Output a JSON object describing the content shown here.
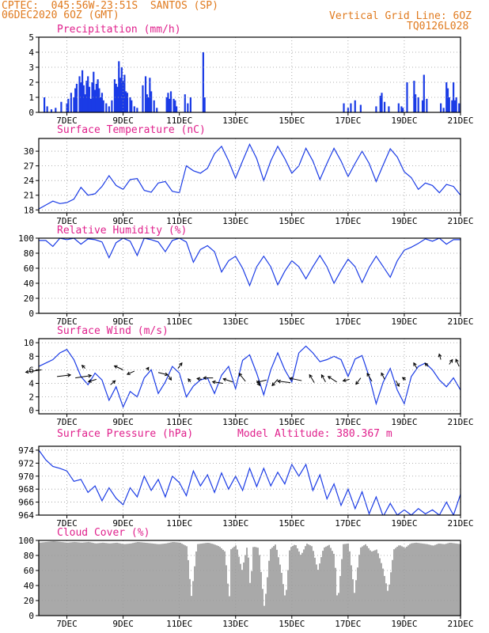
{
  "header": {
    "line1_left": "CPTEC:  045:56W-23:51S  SANTOS (SP)",
    "line2_left": "06DEC2020 6OZ (GMT)",
    "line1_right": "Vertical Grid Line: 6OZ",
    "line2_right": "TQ0126L028"
  },
  "colors": {
    "header": "#e07a1e",
    "title": "#e0208c",
    "series": "#1a3be6",
    "cloud": "#a9a9a9",
    "wind_vector": "#000000",
    "grid": "#999999"
  },
  "x_tick_labels": [
    "7DEC",
    "9DEC",
    "11DEC",
    "13DEC",
    "15DEC",
    "17DEC",
    "19DEC",
    "21DEC"
  ],
  "chart_data": [
    {
      "id": "precip",
      "type": "bar",
      "title": "Precipitation (mm/h)",
      "ylim": [
        0,
        5
      ],
      "yticks": [
        0,
        1,
        2,
        3,
        4,
        5
      ],
      "grid": true,
      "x": [
        6.2,
        6.3,
        6.45,
        6.6,
        6.8,
        7.0,
        7.05,
        7.15,
        7.25,
        7.3,
        7.35,
        7.45,
        7.5,
        7.55,
        7.6,
        7.65,
        7.7,
        7.75,
        7.8,
        7.85,
        7.9,
        7.95,
        8.0,
        8.05,
        8.1,
        8.15,
        8.2,
        8.25,
        8.3,
        8.4,
        8.5,
        8.6,
        8.7,
        8.75,
        8.8,
        8.85,
        8.9,
        8.95,
        9.0,
        9.05,
        9.1,
        9.15,
        9.25,
        9.3,
        9.4,
        9.5,
        9.7,
        9.8,
        9.85,
        9.9,
        9.95,
        10.0,
        10.1,
        10.2,
        10.55,
        10.6,
        10.65,
        10.7,
        10.8,
        10.85,
        10.9,
        11.2,
        11.3,
        11.4,
        11.85,
        11.9,
        16.85,
        17.0,
        17.1,
        17.25,
        17.45,
        18.0,
        18.15,
        18.2,
        18.3,
        18.45,
        18.8,
        18.9,
        18.95,
        19.1,
        19.35,
        19.4,
        19.5,
        19.65,
        19.7,
        19.8,
        20.3,
        20.4,
        20.5,
        20.55,
        20.6,
        20.7,
        20.75,
        20.8,
        20.85,
        20.95
      ],
      "values": [
        1.0,
        0.4,
        0.2,
        0.3,
        0.7,
        0.6,
        0.9,
        1.3,
        1.0,
        1.6,
        1.9,
        2.4,
        2.0,
        2.8,
        1.8,
        1.2,
        2.1,
        2.4,
        1.7,
        0.9,
        2.0,
        2.7,
        1.5,
        1.9,
        2.2,
        1.6,
        1.0,
        1.3,
        0.8,
        0.6,
        0.4,
        0.8,
        2.2,
        1.9,
        1.7,
        3.4,
        2.3,
        3.0,
        2.1,
        2.5,
        1.4,
        1.3,
        1.0,
        0.8,
        0.4,
        0.3,
        1.8,
        2.4,
        1.2,
        1.0,
        2.3,
        1.4,
        0.8,
        0.3,
        1.0,
        1.3,
        0.9,
        1.4,
        0.9,
        0.8,
        0.4,
        1.2,
        0.6,
        1.0,
        4.0,
        1.0,
        0.6,
        0.3,
        0.6,
        0.8,
        0.5,
        0.4,
        1.1,
        1.3,
        0.7,
        0.4,
        0.6,
        0.4,
        0.3,
        2.0,
        2.1,
        1.2,
        1.0,
        0.8,
        2.5,
        0.9,
        0.6,
        0.3,
        2.0,
        1.6,
        1.0,
        0.8,
        2.0,
        0.8,
        1.0,
        0.6
      ]
    },
    {
      "id": "temp",
      "type": "line",
      "title": "Surface Temperature (nC)",
      "ylim": [
        17.4,
        32.6
      ],
      "yticks": [
        18,
        21,
        24,
        27,
        30
      ],
      "grid": true,
      "x": [
        6.0,
        6.25,
        6.5,
        6.75,
        7.0,
        7.25,
        7.5,
        7.75,
        8.0,
        8.25,
        8.5,
        8.75,
        9.0,
        9.25,
        9.5,
        9.75,
        10.0,
        10.25,
        10.5,
        10.75,
        11.0,
        11.25,
        11.5,
        11.75,
        12.0,
        12.25,
        12.5,
        12.75,
        13.0,
        13.25,
        13.5,
        13.75,
        14.0,
        14.25,
        14.5,
        14.75,
        15.0,
        15.25,
        15.5,
        15.75,
        16.0,
        16.25,
        16.5,
        16.75,
        17.0,
        17.25,
        17.5,
        17.75,
        18.0,
        18.25,
        18.5,
        18.75,
        19.0,
        19.25,
        19.5,
        19.75,
        20.0,
        20.25,
        20.5,
        20.75,
        21.0
      ],
      "values": [
        18.2,
        19.0,
        19.8,
        19.3,
        19.5,
        20.2,
        22.6,
        21.0,
        21.3,
        22.8,
        25.0,
        23.0,
        22.2,
        24.2,
        24.4,
        22.0,
        21.6,
        23.5,
        23.8,
        21.8,
        21.5,
        27.0,
        26.0,
        25.5,
        26.5,
        29.5,
        31.0,
        28.0,
        24.5,
        28.0,
        31.4,
        28.5,
        24.0,
        28.0,
        31.0,
        28.5,
        25.5,
        27.0,
        30.6,
        28.0,
        24.2,
        27.5,
        30.6,
        28.0,
        24.8,
        27.5,
        30.0,
        27.5,
        23.8,
        27.2,
        30.5,
        28.8,
        25.8,
        24.6,
        22.2,
        23.5,
        23.0,
        21.5,
        23.2,
        22.8,
        21.0
      ]
    },
    {
      "id": "humidity",
      "type": "line",
      "title": "Relative Humidity (%)",
      "ylim": [
        0,
        100
      ],
      "yticks": [
        0,
        20,
        40,
        60,
        80,
        100
      ],
      "grid": true,
      "x": [
        6.0,
        6.25,
        6.5,
        6.75,
        7.0,
        7.25,
        7.5,
        7.75,
        8.0,
        8.25,
        8.5,
        8.75,
        9.0,
        9.25,
        9.5,
        9.75,
        10.0,
        10.25,
        10.5,
        10.75,
        11.0,
        11.25,
        11.5,
        11.75,
        12.0,
        12.25,
        12.5,
        12.75,
        13.0,
        13.25,
        13.5,
        13.75,
        14.0,
        14.25,
        14.5,
        14.75,
        15.0,
        15.25,
        15.5,
        15.75,
        16.0,
        16.25,
        16.5,
        16.75,
        17.0,
        17.25,
        17.5,
        17.75,
        18.0,
        18.25,
        18.5,
        18.75,
        19.0,
        19.25,
        19.5,
        19.75,
        20.0,
        20.25,
        20.5,
        20.75,
        21.0
      ],
      "values": [
        97,
        97,
        89,
        100,
        98,
        100,
        92,
        99,
        98,
        95,
        74,
        94,
        100,
        96,
        77,
        100,
        98,
        95,
        82,
        97,
        100,
        95,
        68,
        85,
        90,
        82,
        55,
        70,
        76,
        60,
        37,
        62,
        76,
        62,
        38,
        56,
        70,
        62,
        46,
        62,
        77,
        62,
        40,
        57,
        72,
        62,
        41,
        61,
        76,
        62,
        48,
        70,
        84,
        88,
        93,
        99,
        96,
        100,
        92,
        98,
        98
      ]
    },
    {
      "id": "wind",
      "type": "line",
      "title": "Surface Wind (m/s)",
      "ylim": [
        -0.5,
        10.6
      ],
      "yticks": [
        0,
        2,
        4,
        6,
        8,
        10
      ],
      "grid": true,
      "x": [
        6.0,
        6.25,
        6.5,
        6.75,
        7.0,
        7.25,
        7.5,
        7.75,
        8.0,
        8.25,
        8.5,
        8.75,
        9.0,
        9.25,
        9.5,
        9.75,
        10.0,
        10.25,
        10.5,
        10.75,
        11.0,
        11.25,
        11.5,
        11.75,
        12.0,
        12.25,
        12.5,
        12.75,
        13.0,
        13.25,
        13.5,
        13.75,
        14.0,
        14.25,
        14.5,
        14.75,
        15.0,
        15.25,
        15.5,
        15.75,
        16.0,
        16.25,
        16.5,
        16.75,
        17.0,
        17.25,
        17.5,
        17.75,
        18.0,
        18.25,
        18.5,
        18.75,
        19.0,
        19.25,
        19.5,
        19.75,
        20.0,
        20.25,
        20.5,
        20.75,
        21.0
      ],
      "values": [
        6.5,
        7.0,
        7.5,
        8.5,
        9.0,
        7.5,
        5.0,
        3.8,
        5.5,
        4.5,
        1.5,
        3.5,
        0.5,
        2.8,
        2.0,
        4.8,
        6.0,
        2.5,
        4.2,
        6.5,
        5.5,
        2.0,
        3.6,
        4.5,
        4.8,
        2.5,
        5.2,
        6.5,
        3.2,
        7.4,
        8.2,
        5.5,
        2.3,
        6.0,
        8.5,
        6.0,
        4.2,
        8.5,
        9.5,
        8.5,
        7.2,
        7.5,
        8.0,
        7.5,
        5.0,
        7.6,
        8.1,
        5.0,
        1.0,
        4.2,
        6.2,
        3.0,
        1.0,
        5.0,
        6.5,
        7.0,
        6.0,
        4.5,
        3.5,
        4.8,
        3.0
      ],
      "vector_x": [
        6.1,
        6.65,
        7.3,
        7.65,
        8.05,
        8.55,
        9.0,
        9.4,
        9.85,
        10.25,
        10.6,
        10.95,
        11.4,
        11.8,
        12.2,
        12.55,
        12.9,
        13.35,
        13.75,
        14.1,
        14.5,
        14.95,
        15.35,
        15.8,
        16.2,
        16.6,
        17.05,
        17.45,
        17.85,
        18.3,
        18.7,
        19.05,
        19.45,
        19.85,
        20.3,
        20.6,
        20.95
      ],
      "vector_y": [
        6.0,
        5.0,
        4.8,
        6.2,
        4.6,
        3.8,
        6.0,
        5.8,
        6.0,
        5.6,
        5.2,
        6.2,
        4.2,
        4.6,
        4.8,
        4.0,
        4.2,
        4.3,
        4.4,
        4.5,
        4.6,
        4.1,
        4.4,
        4.1,
        4.2,
        4.2,
        4.6,
        4.8,
        4.3,
        4.6,
        4.4,
        4.5,
        6.2,
        6.5,
        7.5,
        6.8,
        6.5
      ],
      "vector_dx": [
        -20,
        17,
        20,
        -4,
        -10,
        6,
        -11,
        -9,
        2,
        12,
        4,
        5,
        -3,
        -6,
        -12,
        -13,
        -12,
        -8,
        4,
        -12,
        -7,
        -16,
        -15,
        -6,
        -5,
        -11,
        -8,
        -6,
        -6,
        -4,
        4,
        -4,
        -4,
        -4,
        -2,
        4,
        -4
      ],
      "vector_dy": [
        3,
        -2,
        -3,
        -4,
        3,
        -5,
        -5,
        4,
        -3,
        3,
        6,
        -7,
        -4,
        -1,
        0,
        -2,
        -4,
        -10,
        6,
        3,
        8,
        -2,
        -3,
        -10,
        -9,
        -7,
        2,
        8,
        -10,
        -8,
        7,
        -3,
        -7,
        -4,
        -7,
        -6,
        -9
      ]
    },
    {
      "id": "pressure",
      "type": "line",
      "title": "Surface Pressure (hPa)",
      "annotation": "Model Altitude: 380.367 m",
      "ylim": [
        964,
        974.6
      ],
      "yticks": [
        964,
        966,
        968,
        970,
        972,
        974
      ],
      "grid": true,
      "x": [
        6.0,
        6.25,
        6.5,
        6.75,
        7.0,
        7.25,
        7.5,
        7.75,
        8.0,
        8.25,
        8.5,
        8.75,
        9.0,
        9.25,
        9.5,
        9.75,
        10.0,
        10.25,
        10.5,
        10.75,
        11.0,
        11.25,
        11.5,
        11.75,
        12.0,
        12.25,
        12.5,
        12.75,
        13.0,
        13.25,
        13.5,
        13.75,
        14.0,
        14.25,
        14.5,
        14.75,
        15.0,
        15.25,
        15.5,
        15.75,
        16.0,
        16.25,
        16.5,
        16.75,
        17.0,
        17.25,
        17.5,
        17.75,
        18.0,
        18.25,
        18.5,
        18.75,
        19.0,
        19.25,
        19.5,
        19.75,
        20.0,
        20.25,
        20.5,
        20.75,
        21.0
      ],
      "values": [
        974.0,
        972.5,
        971.5,
        971.2,
        970.8,
        969.2,
        969.5,
        967.5,
        968.5,
        966.2,
        968.2,
        966.6,
        965.6,
        968.2,
        966.8,
        970.0,
        967.8,
        969.5,
        966.8,
        970.0,
        969.0,
        967.0,
        970.8,
        968.5,
        970.2,
        967.5,
        970.5,
        968.0,
        970.0,
        967.8,
        971.2,
        968.4,
        971.2,
        968.5,
        970.6,
        968.8,
        971.8,
        970.0,
        971.8,
        967.8,
        970.2,
        966.5,
        968.8,
        965.5,
        968.0,
        965.0,
        967.6,
        964.2,
        966.8,
        963.8,
        965.8,
        964.0,
        964.8,
        964.0,
        965.0,
        964.2,
        964.8,
        964.0,
        966.0,
        964.0,
        967.2
      ]
    },
    {
      "id": "cloud",
      "type": "area",
      "title": "Cloud Cover (%)",
      "ylim": [
        0,
        100
      ],
      "yticks": [
        0,
        20,
        40,
        60,
        80,
        100
      ],
      "grid": true,
      "x": [
        6.0,
        6.25,
        6.5,
        6.75,
        7.0,
        7.25,
        7.5,
        7.75,
        8.0,
        8.25,
        8.5,
        8.75,
        9.0,
        9.25,
        9.5,
        9.75,
        10.0,
        10.25,
        10.5,
        10.75,
        11.0,
        11.25,
        11.4,
        11.6,
        11.8,
        12.0,
        12.2,
        12.4,
        12.6,
        12.75,
        12.8,
        13.0,
        13.2,
        13.4,
        13.5,
        13.6,
        13.8,
        14.0,
        14.2,
        14.4,
        14.6,
        14.75,
        14.9,
        15.1,
        15.3,
        15.5,
        15.7,
        15.9,
        16.1,
        16.3,
        16.5,
        16.6,
        16.8,
        17.0,
        17.2,
        17.4,
        17.6,
        17.8,
        18.0,
        18.2,
        18.4,
        18.6,
        18.8,
        19.0,
        19.2,
        19.4,
        19.6,
        19.8,
        20.0,
        20.2,
        20.4,
        20.6,
        20.8,
        21.0
      ],
      "values": [
        97,
        98,
        99,
        98,
        97,
        98,
        97,
        98,
        96,
        97,
        96,
        97,
        95,
        96,
        98,
        97,
        96,
        95,
        96,
        98,
        97,
        92,
        25,
        95,
        96,
        97,
        95,
        92,
        85,
        20,
        88,
        94,
        60,
        95,
        35,
        92,
        90,
        10,
        88,
        95,
        60,
        20,
        90,
        95,
        80,
        96,
        92,
        60,
        90,
        94,
        80,
        15,
        95,
        96,
        30,
        90,
        95,
        85,
        88,
        65,
        30,
        88,
        94,
        90,
        96,
        97,
        96,
        95,
        93,
        96,
        95,
        97,
        96,
        95
      ]
    }
  ]
}
